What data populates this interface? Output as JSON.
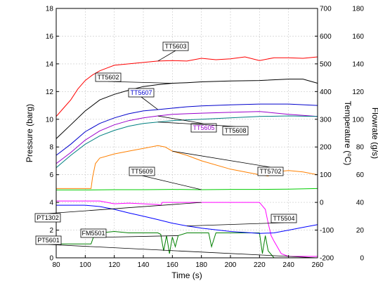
{
  "chart_data": {
    "type": "line",
    "title": "",
    "xlabel": "Time (s)",
    "xlim": [
      80,
      260
    ],
    "xticks": [
      80,
      100,
      120,
      140,
      160,
      180,
      200,
      220,
      240,
      260
    ],
    "y_left": {
      "label": "Pressure (barg)",
      "lim": [
        0,
        18
      ],
      "ticks": [
        0,
        2,
        4,
        6,
        8,
        10,
        12,
        14,
        16,
        18
      ]
    },
    "y_right1": {
      "label": "Temperature (°C)",
      "label_parts": [
        "Temperature (",
        "o",
        "C)"
      ],
      "lim": [
        -200,
        700
      ],
      "ticks": [
        -200,
        -100,
        0,
        100,
        200,
        300,
        400,
        500,
        600,
        700
      ]
    },
    "y_right2": {
      "label": "Flowrate (g/s)",
      "lim": [
        0,
        180
      ],
      "ticks": [
        0,
        20,
        40,
        60,
        80,
        100,
        120,
        140,
        160,
        180
      ]
    },
    "grid": true,
    "series": [
      {
        "name": "TT5603",
        "axis": "temperature",
        "color": "#ff0000",
        "x": [
          80,
          85,
          90,
          95,
          100,
          105,
          110,
          115,
          120,
          130,
          140,
          150,
          160,
          170,
          180,
          190,
          200,
          210,
          220,
          230,
          240,
          250,
          260
        ],
        "y": [
          310,
          340,
          370,
          410,
          440,
          460,
          475,
          485,
          495,
          500,
          505,
          510,
          512,
          510,
          520,
          515,
          518,
          525,
          512,
          522,
          522,
          520,
          525
        ]
      },
      {
        "name": "TT5602",
        "axis": "temperature",
        "color": "#000000",
        "x": [
          80,
          90,
          100,
          110,
          120,
          130,
          140,
          150,
          160,
          170,
          180,
          200,
          220,
          240,
          250,
          260
        ],
        "y": [
          230,
          280,
          330,
          370,
          390,
          405,
          418,
          425,
          430,
          432,
          435,
          438,
          440,
          445,
          445,
          430
        ]
      },
      {
        "name": "TT5607",
        "axis": "temperature",
        "color": "#0000cc",
        "x": [
          80,
          90,
          100,
          110,
          120,
          130,
          140,
          150,
          160,
          170,
          180,
          200,
          220,
          240,
          260
        ],
        "y": [
          170,
          210,
          255,
          285,
          305,
          320,
          330,
          335,
          340,
          345,
          348,
          352,
          355,
          355,
          350
        ]
      },
      {
        "name": "TT5605",
        "axis": "temperature",
        "color": "#9900cc",
        "x": [
          80,
          90,
          100,
          110,
          120,
          130,
          140,
          150,
          160,
          170,
          180,
          200,
          220,
          240,
          260
        ],
        "y": [
          140,
          180,
          225,
          258,
          280,
          295,
          305,
          312,
          318,
          320,
          322,
          325,
          328,
          318,
          310
        ]
      },
      {
        "name": "TT5608",
        "axis": "temperature",
        "color": "#008080",
        "x": [
          80,
          90,
          100,
          110,
          120,
          130,
          140,
          150,
          160,
          170,
          180,
          200,
          220,
          240,
          260
        ],
        "y": [
          125,
          170,
          210,
          240,
          260,
          275,
          285,
          290,
          295,
          298,
          300,
          305,
          310,
          312,
          310
        ]
      },
      {
        "name": "TT5702",
        "axis": "temperature",
        "color": "#ff8000",
        "x": [
          80,
          104,
          105,
          107,
          110,
          120,
          130,
          140,
          150,
          155,
          160,
          170,
          180,
          200,
          220,
          226,
          230,
          240,
          250,
          260
        ],
        "y": [
          50,
          50,
          90,
          140,
          160,
          175,
          185,
          195,
          205,
          200,
          185,
          170,
          150,
          120,
          100,
          95,
          110,
          115,
          110,
          100
        ]
      },
      {
        "name": "TT5609",
        "axis": "temperature",
        "color": "#00cc00",
        "x": [
          80,
          100,
          120,
          140,
          160,
          180,
          200,
          220,
          240,
          260
        ],
        "y": [
          45,
          45,
          46,
          46,
          47,
          46,
          47,
          47,
          48,
          50
        ]
      },
      {
        "name": "PT1302",
        "axis": "pressure",
        "color": "#ff00ff",
        "x": [
          80,
          110,
          120,
          130,
          140,
          150,
          152,
          153,
          160,
          180,
          200,
          220,
          224,
          226,
          228,
          230,
          235,
          240,
          260
        ],
        "y": [
          4.1,
          4.1,
          3.9,
          3.95,
          3.9,
          3.85,
          3.8,
          4.0,
          4.0,
          4.0,
          4.0,
          4.0,
          3.5,
          2.5,
          1.6,
          1.2,
          0.3,
          0.1,
          0.1
        ]
      },
      {
        "name": "FM5501",
        "axis": "flowrate",
        "color": "#008000",
        "x": [
          80,
          104,
          106,
          110,
          120,
          130,
          140,
          150,
          152,
          154,
          156,
          158,
          160,
          162,
          164,
          170,
          180,
          185,
          187,
          190,
          200,
          210,
          220,
          222,
          224,
          226,
          230,
          260
        ],
        "y": [
          10,
          10,
          16,
          18,
          19,
          18,
          18,
          18,
          17,
          5,
          16,
          3,
          15,
          8,
          16,
          18,
          18,
          18,
          8,
          18,
          18,
          18,
          18,
          3,
          16,
          5,
          0,
          0
        ]
      },
      {
        "name": "TT5504",
        "axis": "temperature",
        "color": "#0000ff",
        "x": [
          80,
          100,
          110,
          120,
          130,
          140,
          150,
          160,
          170,
          180,
          200,
          220,
          230,
          240,
          250,
          260
        ],
        "y": [
          -10,
          -10,
          -15,
          -25,
          -38,
          -50,
          -62,
          -75,
          -85,
          -93,
          -105,
          -112,
          -110,
          -100,
          -90,
          -80
        ]
      },
      {
        "name": "PT5601",
        "axis": "pressure",
        "color": "#5a5a5a",
        "x": [
          80,
          260
        ],
        "y": [
          0.0,
          0.0
        ]
      }
    ],
    "annotations": [
      {
        "label": "TT5603",
        "text_color": "#000000",
        "series": "TT5603"
      },
      {
        "label": "TT5602",
        "text_color": "#000000",
        "series": "TT5602"
      },
      {
        "label": "TT5607",
        "text_color": "#0000cc",
        "series": "TT5607"
      },
      {
        "label": "TT5605",
        "text_color": "#9900cc",
        "series": "TT5605"
      },
      {
        "label": "TT5608",
        "text_color": "#000000",
        "series": "TT5608"
      },
      {
        "label": "TT5702",
        "text_color": "#000000",
        "series": "TT5702"
      },
      {
        "label": "TT5609",
        "text_color": "#000000",
        "series": "TT5609"
      },
      {
        "label": "PT1302",
        "text_color": "#000000",
        "series": "PT1302"
      },
      {
        "label": "FM5501",
        "text_color": "#000000",
        "series": "FM5501"
      },
      {
        "label": "TT5504",
        "text_color": "#000000",
        "series": "TT5504"
      },
      {
        "label": "PT5601",
        "text_color": "#000000",
        "series": "PT5601"
      }
    ]
  }
}
